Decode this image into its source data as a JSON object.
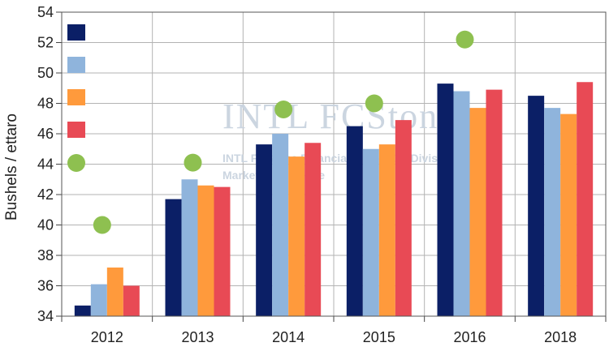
{
  "chart_data": {
    "type": "bar",
    "title": "",
    "xlabel": "",
    "ylabel": "Bushels / ettaro",
    "ylim": [
      34,
      54
    ],
    "yticks": [
      34,
      36,
      38,
      40,
      42,
      44,
      46,
      48,
      50,
      52,
      54
    ],
    "grid": true,
    "legend": "top-left",
    "categories": [
      "2012",
      "2013",
      "2014",
      "2015",
      "2016",
      "2018"
    ],
    "series": [
      {
        "name": "",
        "kind": "bar",
        "color": "#0b1f66",
        "values": [
          34.7,
          41.7,
          45.3,
          46.5,
          49.3,
          48.5
        ]
      },
      {
        "name": "",
        "kind": "bar",
        "color": "#8fb4dc",
        "values": [
          36.1,
          43.0,
          46.0,
          45.0,
          48.8,
          47.7
        ]
      },
      {
        "name": "",
        "kind": "bar",
        "color": "#ff9a3c",
        "values": [
          37.2,
          42.6,
          44.5,
          45.3,
          47.7,
          47.3
        ]
      },
      {
        "name": "",
        "kind": "bar",
        "color": "#e84a55",
        "values": [
          36.0,
          42.5,
          45.4,
          46.9,
          48.9,
          49.4
        ]
      },
      {
        "name": "",
        "kind": "point",
        "color": "#8ec050",
        "values": [
          40.0,
          44.1,
          47.6,
          48.0,
          52.2,
          null
        ]
      }
    ],
    "watermark": {
      "line1": "INTL FCStone",
      "line2": "INTL FCStone Financial Inc. - FCM Division",
      "line3": "Market Intelligence"
    }
  }
}
